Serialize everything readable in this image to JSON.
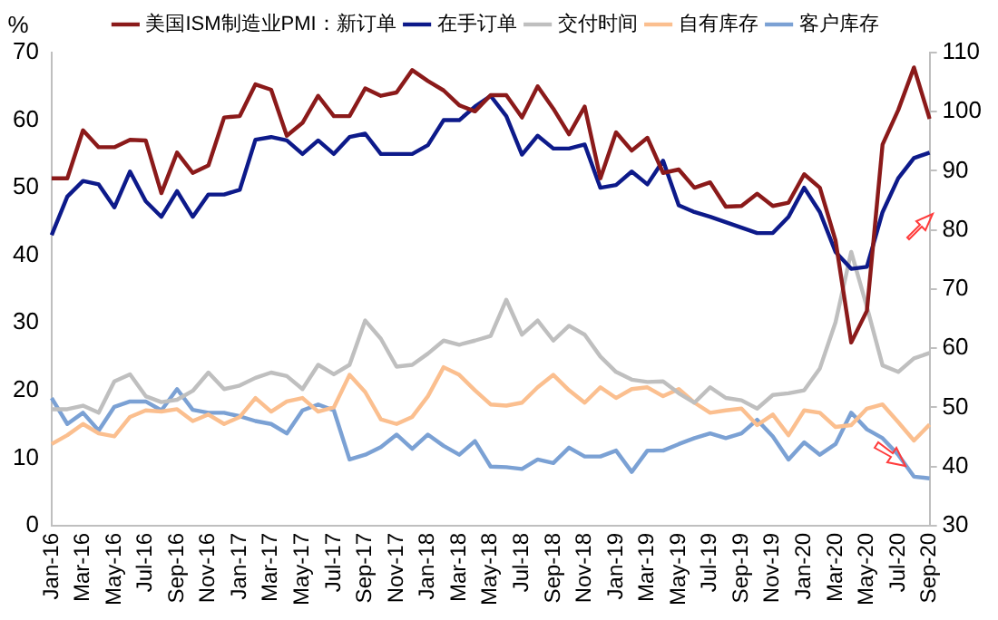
{
  "chart_data": {
    "type": "line",
    "ylabel": "%",
    "legend": "top",
    "grid": false,
    "marker": "none",
    "line_style": "solid",
    "categories": [
      "Jan-16",
      null,
      "Mar-16",
      null,
      "May-16",
      null,
      "Jul-16",
      null,
      "Sep-16",
      null,
      "Nov-16",
      null,
      "Jan-17",
      null,
      "Mar-17",
      null,
      "May-17",
      null,
      "Jul-17",
      null,
      "Sep-17",
      null,
      "Nov-17",
      null,
      "Jan-18",
      null,
      "Mar-18",
      null,
      "May-18",
      null,
      "Jul-18",
      null,
      "Sep-18",
      null,
      "Nov-18",
      null,
      "Jan-19",
      null,
      "Mar-19",
      null,
      "May-19",
      null,
      "Jul-19",
      null,
      "Sep-19",
      null,
      "Nov-19",
      null,
      "Jan-20",
      null,
      "Mar-20",
      null,
      "May-20",
      null,
      "Jul-20",
      null,
      "Sep-20"
    ],
    "ylim": [
      0,
      70
    ],
    "yticks": [
      0,
      10,
      20,
      30,
      40,
      50,
      60,
      70
    ],
    "y2lim": [
      30,
      110
    ],
    "y2ticks": [
      30,
      40,
      50,
      60,
      70,
      80,
      90,
      100,
      110
    ],
    "series": [
      {
        "name": "美国ISM制造业PMI：新订单",
        "color": "#8b1a1a",
        "values": [
          51.4,
          51.4,
          58.5,
          56.0,
          56.0,
          57.1,
          57.0,
          49.2,
          55.2,
          52.2,
          53.3,
          60.4,
          60.6,
          65.3,
          64.5,
          57.7,
          59.6,
          63.6,
          60.6,
          60.6,
          64.7,
          63.6,
          64.1,
          67.4,
          65.8,
          64.4,
          62.2,
          61.3,
          63.7,
          63.7,
          60.4,
          65.0,
          61.7,
          57.9,
          62.0,
          51.4,
          58.2,
          55.5,
          57.4,
          52.2,
          52.7,
          50.0,
          50.8,
          47.2,
          47.3,
          49.1,
          47.3,
          47.8,
          52.0,
          50.0,
          42.2,
          27.1,
          31.8,
          56.4,
          61.5,
          67.8,
          60.2
        ]
      },
      {
        "name": "在手订单",
        "color": "#0d1a8a",
        "values": [
          43.0,
          48.7,
          51.0,
          50.5,
          47.1,
          52.4,
          48.0,
          45.7,
          49.5,
          45.7,
          49.0,
          49.0,
          49.7,
          57.1,
          57.5,
          57.0,
          55.0,
          57.0,
          55.0,
          57.5,
          58.0,
          55.0,
          55.0,
          55.0,
          56.3,
          60.0,
          60.0,
          62.0,
          63.6,
          60.6,
          54.9,
          57.7,
          55.8,
          55.8,
          56.4,
          50.0,
          50.4,
          52.4,
          50.5,
          54.0,
          47.4,
          46.4,
          45.7,
          44.9,
          44.1,
          43.3,
          43.3,
          45.7,
          50.0,
          46.4,
          40.5,
          38.0,
          38.3,
          46.4,
          51.4,
          54.4,
          55.2
        ]
      },
      {
        "name": "交付时间",
        "color": "#bfbfbf",
        "axis": "y2",
        "values": [
          49.7,
          49.7,
          50.3,
          49.1,
          54.4,
          55.6,
          51.9,
          50.9,
          51.3,
          52.8,
          55.9,
          53.1,
          53.7,
          55.0,
          55.9,
          55.3,
          53.1,
          57.2,
          55.6,
          57.2,
          64.7,
          61.6,
          56.9,
          57.2,
          59.1,
          61.3,
          60.6,
          61.3,
          62.1,
          68.2,
          62.3,
          64.7,
          61.3,
          63.8,
          62.3,
          58.6,
          56.0,
          54.7,
          54.3,
          54.4,
          52.4,
          50.8,
          53.4,
          51.6,
          51.2,
          49.8,
          52.1,
          52.4,
          52.9,
          56.6,
          64.4,
          76.3,
          67.0,
          57.1,
          56.0,
          58.3,
          59.2
        ]
      },
      {
        "name": "自有库存",
        "color": "#fbbf8f",
        "axis": "y2",
        "values": [
          43.8,
          45.3,
          47.2,
          45.6,
          45.1,
          48.4,
          49.5,
          49.3,
          49.7,
          47.7,
          48.8,
          47.2,
          48.4,
          51.6,
          49.3,
          51.0,
          51.6,
          49.3,
          50.0,
          55.5,
          52.6,
          48.0,
          47.2,
          48.4,
          51.9,
          56.8,
          55.5,
          52.9,
          50.5,
          50.3,
          50.8,
          53.4,
          55.5,
          52.9,
          50.8,
          53.4,
          51.6,
          53.1,
          53.4,
          51.9,
          53.1,
          50.8,
          49.1,
          49.5,
          49.8,
          47.0,
          48.8,
          45.3,
          49.5,
          49.1,
          46.7,
          47.0,
          49.8,
          50.5,
          47.5,
          44.4,
          47.1
        ]
      },
      {
        "name": "客户库存",
        "color": "#7ba1d4",
        "axis": "y2",
        "values": [
          51.6,
          47.2,
          49.1,
          46.1,
          50.1,
          51.0,
          51.0,
          49.5,
          53.1,
          49.6,
          49.1,
          49.1,
          48.5,
          47.7,
          47.2,
          45.6,
          49.5,
          50.5,
          49.5,
          41.2,
          42.0,
          43.3,
          45.4,
          43.0,
          45.4,
          43.5,
          42.0,
          44.3,
          40.0,
          39.9,
          39.6,
          41.2,
          40.6,
          43.2,
          41.7,
          41.7,
          42.7,
          39.1,
          42.7,
          42.7,
          43.8,
          44.8,
          45.6,
          44.8,
          45.6,
          47.9,
          45.1,
          41.2,
          44.1,
          42.0,
          43.8,
          49.1,
          46.3,
          44.8,
          42.0,
          38.3,
          38.0
        ]
      }
    ]
  }
}
